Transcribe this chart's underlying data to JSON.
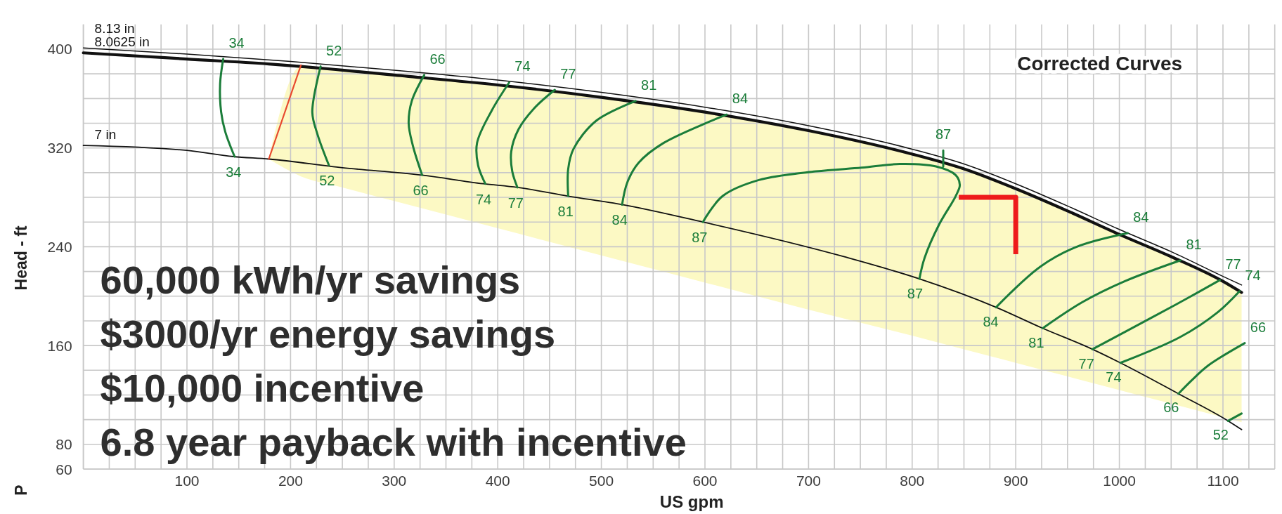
{
  "chart_data": {
    "type": "line",
    "title": "Corrected Curves",
    "xlabel": "US gpm",
    "ylabel": "Head - ft",
    "annotations": [
      "60,000 kWh/yr savings",
      "$3000/yr energy savings",
      "$10,000 incentive",
      "6.8 year payback with incentive",
      "P"
    ],
    "xlim": [
      0,
      1150
    ],
    "ylim": [
      60,
      420
    ],
    "xticks": [
      {
        "value": 0,
        "label": null
      },
      {
        "value": 25,
        "label": null
      },
      {
        "value": 50,
        "label": null
      },
      {
        "value": 75,
        "label": null
      },
      100,
      {
        "value": 125,
        "label": null
      },
      {
        "value": 150,
        "label": null
      },
      {
        "value": 175,
        "label": null
      },
      200,
      {
        "value": 225,
        "label": null
      },
      {
        "value": 250,
        "label": null
      },
      {
        "value": 275,
        "label": null
      },
      300,
      {
        "value": 325,
        "label": null
      },
      {
        "value": 350,
        "label": null
      },
      {
        "value": 375,
        "label": null
      },
      400,
      {
        "value": 425,
        "label": null
      },
      {
        "value": 450,
        "label": null
      },
      {
        "value": 475,
        "label": null
      },
      500,
      {
        "value": 525,
        "label": null
      },
      {
        "value": 550,
        "label": null
      },
      {
        "value": 575,
        "label": null
      },
      600,
      {
        "value": 625,
        "label": null
      },
      {
        "value": 650,
        "label": null
      },
      {
        "value": 675,
        "label": null
      },
      700,
      {
        "value": 725,
        "label": null
      },
      {
        "value": 750,
        "label": null
      },
      {
        "value": 775,
        "label": null
      },
      800,
      {
        "value": 825,
        "label": null
      },
      {
        "value": 850,
        "label": null
      },
      {
        "value": 875,
        "label": null
      },
      900,
      {
        "value": 925,
        "label": null
      },
      {
        "value": 950,
        "label": null
      },
      {
        "value": 975,
        "label": null
      },
      1000,
      {
        "value": 1025,
        "label": null
      },
      {
        "value": 1050,
        "label": null
      },
      {
        "value": 1075,
        "label": null
      },
      1100,
      {
        "value": 1125,
        "label": null
      },
      {
        "value": 1150,
        "label": null
      }
    ],
    "yticks": [
      60,
      80,
      {
        "value": 100,
        "label": null
      },
      {
        "value": 120,
        "label": null
      },
      {
        "value": 140,
        "label": null
      },
      160,
      {
        "value": 180,
        "label": null
      },
      {
        "value": 200,
        "label": null
      },
      {
        "value": 220,
        "label": null
      },
      240,
      {
        "value": 260,
        "label": null
      },
      {
        "value": 280,
        "label": null
      },
      {
        "value": 300,
        "label": null
      },
      320,
      {
        "value": 340,
        "label": null
      },
      {
        "value": 360,
        "label": null
      },
      {
        "value": 380,
        "label": null
      },
      400
    ],
    "grid": true,
    "series": [
      {
        "name": "8.13 in",
        "color": "#111111",
        "x": [
          0,
          100,
          200,
          300,
          400,
          500,
          600,
          700,
          800,
          850,
          900,
          950,
          1000,
          1050,
          1100,
          1118
        ],
        "values": [
          401,
          396,
          390,
          383,
          375,
          365,
          353,
          338,
          319,
          307,
          291,
          273,
          254,
          236,
          216,
          209
        ]
      },
      {
        "name": "8.0625 in",
        "color": "#111111",
        "x": [
          0,
          100,
          179,
          210,
          250,
          300,
          400,
          500,
          600,
          700,
          800,
          850,
          900,
          950,
          1000,
          1050,
          1100,
          1118
        ],
        "values": [
          397,
          392,
          388,
          386,
          383,
          379,
          371,
          361,
          349,
          334,
          315,
          303,
          287,
          269,
          250,
          232,
          212,
          203
        ],
        "upper": [
          null,
          null,
          311,
          386,
          383,
          379,
          371,
          361,
          349,
          334,
          315,
          303,
          287,
          269,
          250,
          232,
          212,
          203
        ],
        "lower": [
          null,
          null,
          311,
          297,
          288,
          277,
          255,
          233,
          211,
          189,
          168,
          157,
          146,
          135,
          124,
          113,
          102,
          98
        ]
      },
      {
        "name": "7 in",
        "color": "#111111",
        "x": [
          0,
          100,
          145,
          179,
          250,
          327,
          386,
          419,
          468,
          521,
          598,
          734,
          807,
          881,
          926,
          974,
          1001,
          1057,
          1105,
          1118
        ],
        "values": [
          322,
          318,
          313,
          311,
          304,
          298,
          291,
          288,
          281,
          274,
          260,
          232,
          214,
          191,
          174,
          157,
          146,
          121,
          99,
          92
        ]
      },
      {
        "color": "#e84a2f",
        "x": [
          179,
          210
        ],
        "values": [
          311,
          387
        ]
      },
      {
        "name": "34",
        "color": "#1b7d3a",
        "x": [
          135,
          132,
          133,
          137,
          146
        ],
        "values": [
          392,
          372,
          349,
          333,
          313
        ]
      },
      {
        "name": "52",
        "color": "#1b7d3a",
        "x": [
          229,
          221,
          226,
          237,
          null,
          1105,
          1118
        ],
        "values": [
          386,
          349,
          331,
          306,
          null,
          99,
          105
        ]
      },
      {
        "name": "66",
        "color": "#1b7d3a",
        "x": [
          329,
          317,
          314,
          318,
          327,
          null,
          1057,
          1070,
          1086,
          1121
        ],
        "values": [
          379,
          358,
          340,
          322,
          298,
          null,
          121,
          132,
          144,
          162
        ]
      },
      {
        "name": "74",
        "color": "#1b7d3a",
        "x": [
          411,
          394,
          380,
          381,
          388,
          null,
          1001,
          1059,
          1095,
          1116
        ],
        "values": [
          373,
          350,
          324,
          306,
          291,
          null,
          146,
          167,
          187,
          204
        ]
      },
      {
        "name": "77",
        "color": "#1b7d3a",
        "x": [
          455,
          435,
          420,
          413,
          414,
          419,
          null,
          974,
          1032,
          1065,
          1097
        ],
        "values": [
          367,
          352,
          335,
          317,
          301,
          288,
          null,
          157,
          183,
          198,
          213
        ]
      },
      {
        "name": "81",
        "color": "#1b7d3a",
        "x": [
          533,
          495,
          473,
          468,
          468,
          null,
          926,
          964,
          1005,
          1059
        ],
        "values": [
          358,
          342,
          319,
          303,
          281,
          null,
          174,
          195,
          212,
          229
        ]
      },
      {
        "name": "84",
        "color": "#1b7d3a",
        "x": [
          621,
          560,
          536,
          525,
          520,
          null,
          881,
          924,
          959,
          1008
        ],
        "values": [
          347,
          324,
          308,
          292,
          274,
          null,
          191,
          224,
          240,
          251
        ]
      },
      {
        "name": "87",
        "color": "#1b7d3a",
        "x": [
          598,
          617,
          652,
          707,
          751,
          788,
          823,
          842,
          846,
          842,
          826,
          812,
          807,
          null,
          830,
          830
        ],
        "values": [
          260,
          281,
          294,
          301,
          304,
          307,
          305,
          298,
          290,
          281,
          258,
          231,
          214,
          null,
          318,
          305
        ]
      },
      {
        "color": "#ee1b1b",
        "x": [
          845,
          900,
          900
        ],
        "values": [
          280,
          280,
          234
        ]
      }
    ]
  }
}
